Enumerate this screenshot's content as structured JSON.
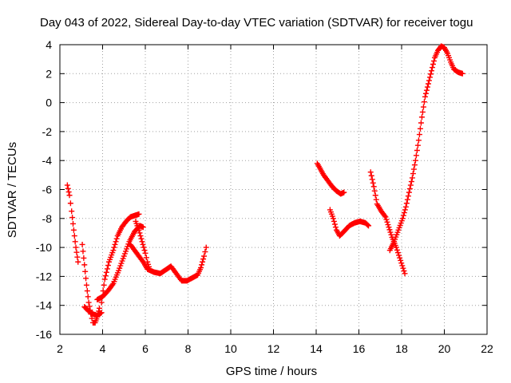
{
  "chart_data": {
    "type": "scatter",
    "title": "Day 043 of 2022, Sidereal Day-to-day VTEC variation (SDTVAR) for receiver togu",
    "xlabel": "GPS time / hours",
    "ylabel": "SDTVAR / TECUs",
    "xlim": [
      2,
      22
    ],
    "ylim": [
      -16,
      4
    ],
    "xticks": [
      "2",
      "4",
      "6",
      "8",
      "10",
      "12",
      "14",
      "16",
      "18",
      "20",
      "22"
    ],
    "yticks": [
      "4",
      "2",
      "0",
      "-2",
      "-4",
      "-6",
      "-8",
      "-10",
      "-12",
      "-14",
      "-16"
    ],
    "xtick_values": [
      2,
      4,
      6,
      8,
      10,
      12,
      14,
      16,
      18,
      20,
      22
    ],
    "ytick_values": [
      4,
      2,
      0,
      -2,
      -4,
      -6,
      -8,
      -10,
      -12,
      -14,
      -16
    ],
    "grid": true,
    "marker": "plus",
    "color": "#ff0000",
    "series": [
      {
        "points": [
          [
            2.35,
            -5.7
          ],
          [
            2.45,
            -6.4
          ],
          [
            2.55,
            -7.5
          ],
          [
            2.65,
            -8.8
          ],
          [
            2.75,
            -10.0
          ],
          [
            2.85,
            -11.0
          ]
        ]
      },
      {
        "points": [
          [
            3.05,
            -9.8
          ],
          [
            3.15,
            -11.2
          ],
          [
            3.25,
            -12.6
          ],
          [
            3.35,
            -13.8
          ],
          [
            3.45,
            -14.6
          ],
          [
            3.55,
            -15.2
          ],
          [
            3.65,
            -15.2
          ],
          [
            3.75,
            -14.8
          ],
          [
            3.85,
            -14.2
          ]
        ]
      },
      {
        "points": [
          [
            3.15,
            -14.1
          ],
          [
            3.35,
            -14.4
          ],
          [
            3.55,
            -14.6
          ],
          [
            3.75,
            -14.7
          ],
          [
            3.95,
            -14.5
          ]
        ]
      },
      {
        "points": [
          [
            3.75,
            -13.6
          ],
          [
            4.0,
            -13.4
          ],
          [
            4.25,
            -13.0
          ],
          [
            4.5,
            -12.5
          ],
          [
            4.75,
            -11.6
          ],
          [
            5.0,
            -10.6
          ],
          [
            5.25,
            -9.6
          ],
          [
            5.5,
            -8.9
          ],
          [
            5.75,
            -8.5
          ],
          [
            5.9,
            -8.6
          ]
        ]
      },
      {
        "points": [
          [
            3.95,
            -13.8
          ],
          [
            4.1,
            -12.2
          ],
          [
            4.3,
            -11.0
          ],
          [
            4.5,
            -10.2
          ],
          [
            4.7,
            -9.2
          ],
          [
            4.9,
            -8.6
          ],
          [
            5.1,
            -8.2
          ],
          [
            5.3,
            -7.9
          ],
          [
            5.5,
            -7.8
          ],
          [
            5.7,
            -7.7
          ]
        ]
      },
      {
        "points": [
          [
            5.55,
            -8.2
          ],
          [
            5.7,
            -8.8
          ],
          [
            5.85,
            -9.6
          ],
          [
            6.0,
            -10.4
          ],
          [
            6.1,
            -11.0
          ],
          [
            6.2,
            -11.5
          ]
        ]
      },
      {
        "points": [
          [
            5.3,
            -9.8
          ],
          [
            5.5,
            -10.2
          ],
          [
            5.7,
            -10.6
          ],
          [
            5.9,
            -11.0
          ],
          [
            6.1,
            -11.5
          ],
          [
            6.4,
            -11.7
          ],
          [
            6.7,
            -11.8
          ],
          [
            7.0,
            -11.5
          ],
          [
            7.2,
            -11.3
          ],
          [
            7.45,
            -11.8
          ],
          [
            7.7,
            -12.3
          ],
          [
            7.95,
            -12.3
          ],
          [
            8.2,
            -12.1
          ],
          [
            8.45,
            -11.9
          ],
          [
            8.6,
            -11.4
          ],
          [
            8.75,
            -10.6
          ],
          [
            8.85,
            -10.0
          ]
        ]
      },
      {
        "points": [
          [
            14.05,
            -4.2
          ],
          [
            14.2,
            -4.6
          ],
          [
            14.35,
            -5.0
          ],
          [
            14.55,
            -5.4
          ],
          [
            14.75,
            -5.8
          ],
          [
            14.95,
            -6.1
          ],
          [
            15.15,
            -6.3
          ],
          [
            15.3,
            -6.2
          ]
        ]
      },
      {
        "points": [
          [
            14.65,
            -7.4
          ],
          [
            14.8,
            -8.0
          ],
          [
            14.95,
            -8.8
          ],
          [
            15.1,
            -9.2
          ],
          [
            15.3,
            -8.9
          ],
          [
            15.55,
            -8.5
          ],
          [
            15.8,
            -8.3
          ],
          [
            16.05,
            -8.2
          ],
          [
            16.3,
            -8.3
          ],
          [
            16.45,
            -8.5
          ]
        ]
      },
      {
        "points": [
          [
            16.55,
            -4.8
          ],
          [
            16.7,
            -5.8
          ],
          [
            16.85,
            -7.0
          ],
          [
            17.05,
            -7.5
          ],
          [
            17.25,
            -7.9
          ],
          [
            17.4,
            -8.6
          ],
          [
            17.55,
            -9.3
          ],
          [
            17.75,
            -10.0
          ],
          [
            17.95,
            -10.9
          ],
          [
            18.15,
            -11.8
          ]
        ]
      },
      {
        "points": [
          [
            17.45,
            -10.2
          ],
          [
            17.65,
            -9.6
          ],
          [
            17.85,
            -8.8
          ],
          [
            18.05,
            -8.0
          ],
          [
            18.2,
            -7.2
          ],
          [
            18.35,
            -6.2
          ],
          [
            18.5,
            -5.2
          ],
          [
            18.65,
            -4.0
          ],
          [
            18.8,
            -2.6
          ],
          [
            18.95,
            -1.0
          ],
          [
            19.1,
            0.4
          ],
          [
            19.25,
            1.3
          ],
          [
            19.4,
            2.2
          ],
          [
            19.55,
            3.1
          ],
          [
            19.7,
            3.6
          ],
          [
            19.85,
            3.9
          ],
          [
            20.0,
            3.8
          ],
          [
            20.15,
            3.4
          ],
          [
            20.3,
            2.8
          ],
          [
            20.45,
            2.3
          ],
          [
            20.65,
            2.1
          ],
          [
            20.85,
            2.0
          ]
        ]
      }
    ]
  }
}
